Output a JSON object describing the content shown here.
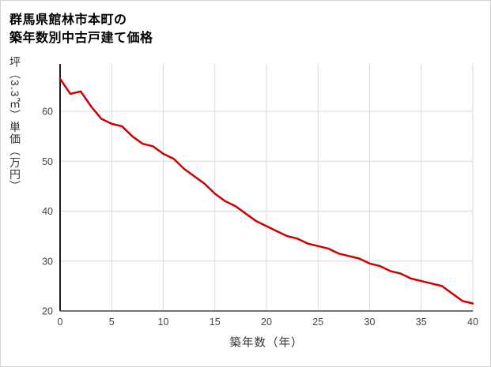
{
  "title": {
    "line1": "群馬県館林市本町の",
    "line2": "築年数別中古戸建て価格"
  },
  "chart_data": {
    "type": "line",
    "title": "群馬県館林市本町の築年数別中古戸建て価格",
    "xlabel": "築年数（年）",
    "ylabel": "坪（3.3㎡）単価（万円）",
    "x": [
      0,
      1,
      2,
      3,
      4,
      5,
      6,
      7,
      8,
      9,
      10,
      11,
      12,
      13,
      14,
      15,
      16,
      17,
      18,
      19,
      20,
      21,
      22,
      23,
      24,
      25,
      26,
      27,
      28,
      29,
      30,
      31,
      32,
      33,
      34,
      35,
      36,
      37,
      38,
      39,
      40
    ],
    "values": [
      66.5,
      63.5,
      64,
      61,
      58.5,
      57.5,
      57,
      55,
      53.5,
      53,
      51.5,
      50.5,
      48.5,
      47,
      45.5,
      43.5,
      42,
      41,
      39.5,
      38,
      37,
      36,
      35,
      34.5,
      33.5,
      33,
      32.5,
      31.5,
      31,
      30.5,
      29.5,
      29,
      28,
      27.5,
      26.5,
      26,
      25.5,
      25,
      23.5,
      22,
      21.5
    ],
    "xlim": [
      0,
      40
    ],
    "ylim": [
      20,
      69.5
    ],
    "xticks": [
      0,
      5,
      10,
      15,
      20,
      25,
      30,
      35,
      40
    ],
    "yticks": [
      20,
      30,
      40,
      50,
      60
    ],
    "grid": true,
    "legend": "none",
    "line_color": "#cc0000",
    "grid_color": "#d9d9d9",
    "axis_color": "#454545",
    "tick_color": "#444444"
  }
}
